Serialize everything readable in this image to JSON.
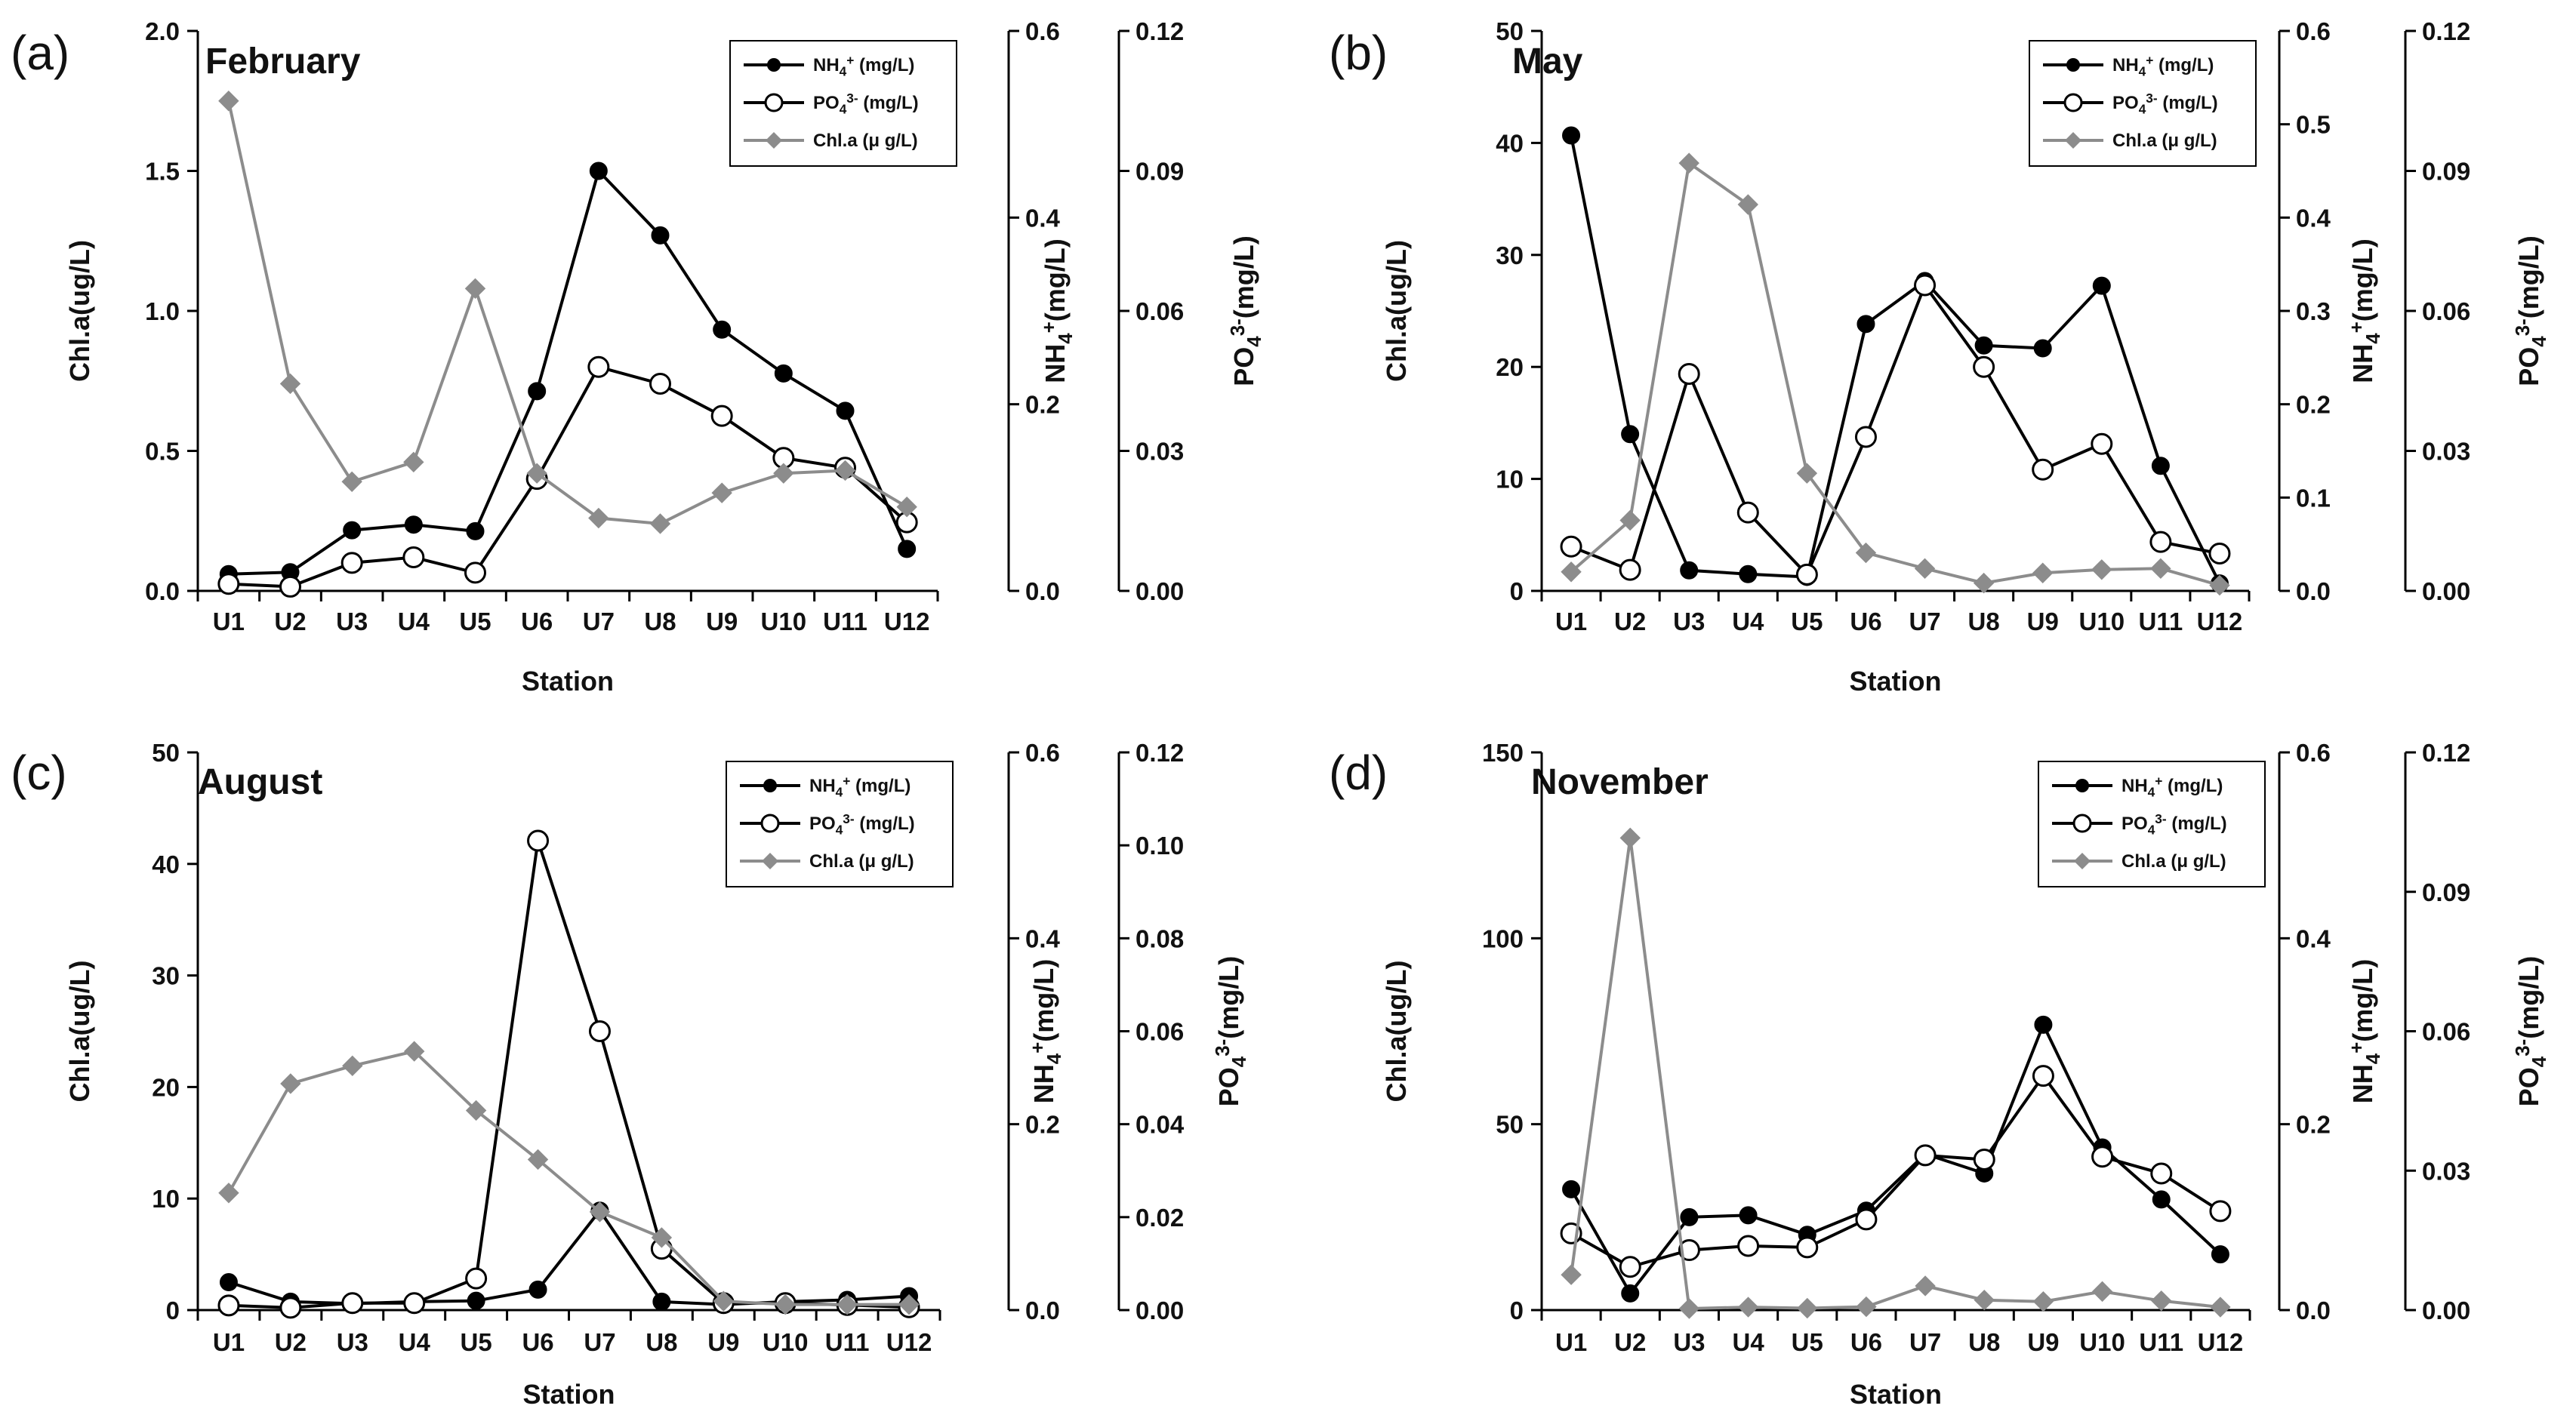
{
  "figure": {
    "xlabel": "Station",
    "legend": {
      "nh4": "NH4+ (mg/L)",
      "po4": "PO43- (mg/L)",
      "chla": "Chl.a (μ g/L)"
    },
    "colors": {
      "nh4": "#000000",
      "po4": "#000000",
      "chla": "#8c8c8c"
    }
  },
  "chart_data": [
    {
      "type": "line",
      "panel_label": "(a)",
      "title": "February",
      "categories": [
        "U1",
        "U2",
        "U3",
        "U4",
        "U5",
        "U6",
        "U7",
        "U8",
        "U9",
        "U10",
        "U11",
        "U12"
      ],
      "xlabel": "Station",
      "ylabel": "Chl.a(ug/L)",
      "y2label": "NH4+(mg/L)",
      "y3label": "PO43-(mg/L)",
      "ylim": [
        0,
        2.0
      ],
      "y2lim": [
        0,
        0.6
      ],
      "y3lim": [
        0,
        0.12
      ],
      "yticks": [
        "0.0",
        "0.5",
        "1.0",
        "1.5",
        "2.0"
      ],
      "y2ticks": [
        "0.0",
        "0.2",
        "0.4",
        "0.6"
      ],
      "y3ticks": [
        "0.00",
        "0.03",
        "0.06",
        "0.09",
        "0.12"
      ],
      "series": [
        {
          "name": "NH4+ (mg/L)",
          "axis": "y2",
          "values": [
            0.018,
            0.02,
            0.065,
            0.071,
            0.064,
            0.214,
            0.45,
            0.381,
            0.28,
            0.233,
            0.193,
            0.045
          ]
        },
        {
          "name": "PO43- (mg/L)",
          "axis": "y3",
          "values": [
            0.0015,
            0.0009,
            0.006,
            0.0072,
            0.0039,
            0.024,
            0.048,
            0.0444,
            0.0375,
            0.0285,
            0.0264,
            0.0147
          ]
        },
        {
          "name": "Chl.a (μ g/L)",
          "axis": "y",
          "values": [
            1.75,
            0.74,
            0.39,
            0.46,
            1.08,
            0.42,
            0.26,
            0.24,
            0.35,
            0.42,
            0.43,
            0.3
          ]
        }
      ]
    },
    {
      "type": "line",
      "panel_label": "(b)",
      "title": "May",
      "categories": [
        "U1",
        "U2",
        "U3",
        "U4",
        "U5",
        "U6",
        "U7",
        "U8",
        "U9",
        "U10",
        "U11",
        "U12"
      ],
      "xlabel": "Station",
      "ylabel": "Chl.a(ug/L)",
      "y2label": "NH4+(mg/L)",
      "y3label": "PO43-(mg/L)",
      "ylim": [
        0,
        50
      ],
      "y2lim": [
        0,
        0.6
      ],
      "y3lim": [
        0,
        0.12
      ],
      "yticks": [
        "0",
        "10",
        "20",
        "30",
        "40",
        "50"
      ],
      "y2ticks": [
        "0.0",
        "0.1",
        "0.2",
        "0.3",
        "0.4",
        "0.5",
        "0.6"
      ],
      "y3ticks": [
        "0.00",
        "0.03",
        "0.06",
        "0.09",
        "0.12"
      ],
      "series": [
        {
          "name": "NH4+ (mg/L)",
          "axis": "y2",
          "values": [
            0.488,
            0.168,
            0.022,
            0.018,
            0.015,
            0.286,
            0.332,
            0.263,
            0.26,
            0.327,
            0.134,
            0.008
          ]
        },
        {
          "name": "PO43- (mg/L)",
          "axis": "y3",
          "values": [
            0.0095,
            0.0045,
            0.0465,
            0.0168,
            0.0035,
            0.033,
            0.0655,
            0.048,
            0.026,
            0.0315,
            0.0105,
            0.008
          ]
        },
        {
          "name": "Chl.a (μ g/L)",
          "axis": "y",
          "values": [
            1.7,
            6.3,
            38.2,
            34.5,
            10.5,
            3.4,
            2.0,
            0.7,
            1.6,
            1.9,
            2.0,
            0.5
          ]
        }
      ]
    },
    {
      "type": "line",
      "panel_label": "(c)",
      "title": "August",
      "categories": [
        "U1",
        "U2",
        "U3",
        "U4",
        "U5",
        "U6",
        "U7",
        "U8",
        "U9",
        "U10",
        "U11",
        "U12"
      ],
      "xlabel": "Station",
      "ylabel": "Chl.a(ug/L)",
      "y2label": "NH4+(mg/L)",
      "y3label": "PO43-(mg/L)",
      "ylim": [
        0,
        50
      ],
      "y2lim": [
        0,
        0.6
      ],
      "y3lim": [
        0,
        0.12
      ],
      "yticks": [
        "0",
        "10",
        "20",
        "30",
        "40",
        "50"
      ],
      "y2ticks": [
        "0.0",
        "0.2",
        "0.4",
        "0.6"
      ],
      "y3ticks": [
        "0.00",
        "0.02",
        "0.04",
        "0.06",
        "0.08",
        "0.10",
        "0.12"
      ],
      "series": [
        {
          "name": "NH4+ (mg/L)",
          "axis": "y2",
          "values": [
            0.03,
            0.009,
            0.007,
            0.009,
            0.01,
            0.022,
            0.107,
            0.009,
            0.006,
            0.009,
            0.011,
            0.015
          ]
        },
        {
          "name": "PO43- (mg/L)",
          "axis": "y3",
          "values": [
            0.001,
            0.0005,
            0.0015,
            0.0015,
            0.0068,
            0.101,
            0.06,
            0.0132,
            0.0015,
            0.0015,
            0.0011,
            0.0006
          ]
        },
        {
          "name": "Chl.a (μ g/L)",
          "axis": "y",
          "values": [
            10.5,
            20.3,
            21.9,
            23.2,
            17.9,
            13.5,
            8.8,
            6.5,
            0.8,
            0.5,
            0.5,
            0.5
          ]
        }
      ]
    },
    {
      "type": "line",
      "panel_label": "(d)",
      "title": "November",
      "categories": [
        "U1",
        "U2",
        "U3",
        "U4",
        "U5",
        "U6",
        "U7",
        "U8",
        "U9",
        "U10",
        "U11",
        "U12"
      ],
      "xlabel": "Station",
      "ylabel": "Chl.a(ug/L)",
      "y2label": "NH4+(mg/L)",
      "y3label": "PO43-(mg/L)",
      "ylim": [
        0,
        150
      ],
      "y2lim": [
        0,
        0.6
      ],
      "y3lim": [
        0,
        0.12
      ],
      "yticks": [
        "0",
        "50",
        "100",
        "150"
      ],
      "y2ticks": [
        "0.0",
        "0.2",
        "0.4",
        "0.6"
      ],
      "y3ticks": [
        "0.00",
        "0.03",
        "0.06",
        "0.09",
        "0.12"
      ],
      "series": [
        {
          "name": "NH4+ (mg/L)",
          "axis": "y2",
          "values": [
            0.13,
            0.018,
            0.1,
            0.102,
            0.081,
            0.107,
            0.168,
            0.147,
            0.307,
            0.175,
            0.119,
            0.06
          ]
        },
        {
          "name": "PO43- (mg/L)",
          "axis": "y3",
          "values": [
            0.0165,
            0.0093,
            0.0129,
            0.0138,
            0.0135,
            0.0195,
            0.0333,
            0.0324,
            0.0504,
            0.033,
            0.0294,
            0.0213
          ]
        },
        {
          "name": "Chl.a (μ g/L)",
          "axis": "y",
          "values": [
            9.5,
            127.0,
            0.4,
            0.8,
            0.5,
            0.9,
            6.5,
            2.7,
            2.3,
            5.0,
            2.5,
            0.8
          ]
        }
      ]
    }
  ]
}
